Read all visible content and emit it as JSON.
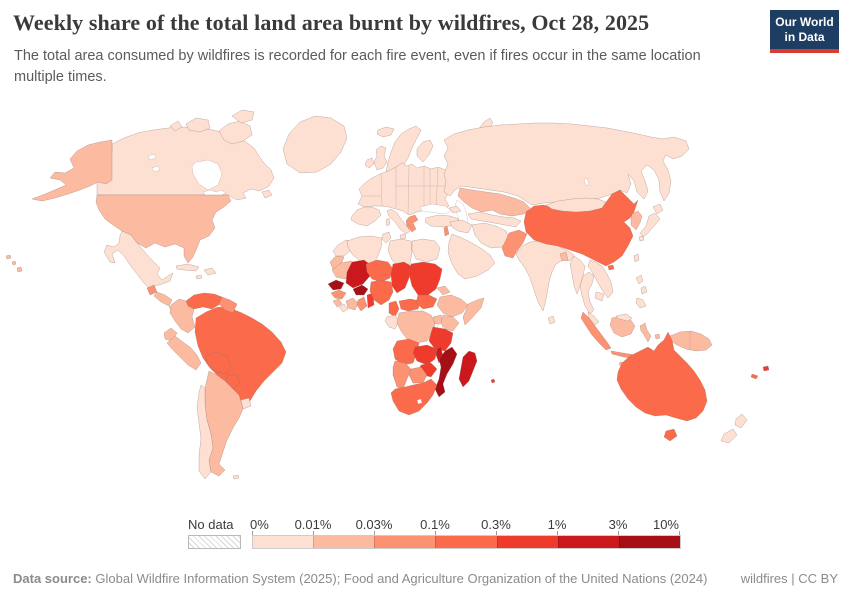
{
  "header": {
    "title": "Weekly share of the total land area burnt by wildfires, Oct 28, 2025",
    "subtitle": "The total area consumed by wildfires is recorded for each fire event, even if fires occur in the same location multiple times.",
    "logo": {
      "line1": "Our World",
      "line2": "in Data",
      "bg": "#1d3d63",
      "accent": "#d73c34"
    }
  },
  "legend": {
    "no_data_label": "No data",
    "tick_labels": [
      "0%",
      "0.01%",
      "0.03%",
      "0.1%",
      "0.3%",
      "1%",
      "3%",
      "10%"
    ]
  },
  "footer": {
    "source_label": "Data source:",
    "source_text": "Global Wildfire Information System (2025); Food and Agriculture Organization of the United Nations (2024)",
    "attribution": "wildfires | CC BY"
  },
  "map": {
    "water": "#ffffff",
    "border_color": "#8d7068"
  },
  "chart_data": {
    "type": "heatmap",
    "subtype": "world-choropleth",
    "title": "Weekly share of the total land area burnt by wildfires",
    "date": "Oct 28, 2025",
    "unit": "share of total land area burnt per week",
    "legend_position": "bottom",
    "bin_ranges": [
      "0-0.01%",
      "0.01-0.03%",
      "0.03-0.1%",
      "0.1-0.3%",
      "0.3-1%",
      "1-3%",
      "3-10%"
    ],
    "bin_colors": [
      "#fee0d2",
      "#fcbba1",
      "#fc9272",
      "#fb6a4a",
      "#ef3b2c",
      "#cb181d",
      "#a50f15"
    ],
    "no_data_label": "No data",
    "country_bins": {
      "canada": "0-0.01%",
      "united_states": "0.01-0.03%",
      "greenland": "0-0.01%",
      "mexico": "0-0.01%",
      "guatemala": "0.03-0.1%",
      "honduras_nicaragua": "0.01-0.03%",
      "costa_rica_panama": "0-0.01%",
      "cuba": "0-0.01%",
      "hispaniola": "0-0.01%",
      "jamaica": "0-0.01%",
      "venezuela": "0.1-0.3%",
      "colombia": "0.01-0.03%",
      "guyana_suriname": "0.03-0.1%",
      "ecuador": "0.01-0.03%",
      "peru": "0.01-0.03%",
      "brazil": "0.1-0.3%",
      "bolivia": "0.1-0.3%",
      "paraguay": "0.1-0.3%",
      "uruguay": "0-0.01%",
      "argentina": "0.01-0.03%",
      "chile": "0-0.01%",
      "falkland_islands": "0-0.01%",
      "iceland": "0-0.01%",
      "united_kingdom": "0-0.01%",
      "ireland": "0-0.01%",
      "norway_sweden": "0-0.01%",
      "finland": "0-0.01%",
      "europe_mainland": "0-0.01%",
      "iberia": "0-0.01%",
      "italy": "0-0.01%",
      "greece": "0.03-0.1%",
      "turkey": "0-0.01%",
      "novaya_zemlya": "0-0.01%",
      "russia": "0-0.01%",
      "kazakhstan": "0.01-0.03%",
      "central_asia": "0-0.01%",
      "caucasus": "0-0.01%",
      "syria_iraq": "0-0.01%",
      "iran": "0-0.01%",
      "arabia": "0-0.01%",
      "levant": "0.03-0.1%",
      "pakistan": "0.03-0.1%",
      "india": "0-0.01%",
      "sri_lanka": "0-0.01%",
      "bangladesh": "0.01-0.03%",
      "china": "0.1-0.3%",
      "mongolia": "0-0.01%",
      "korea": "0.01-0.03%",
      "japan": "0-0.01%",
      "taiwan": "0-0.01%",
      "myanmar": "0-0.01%",
      "thailand": "0-0.01%",
      "laos_vietnam": "0-0.01%",
      "cambodia": "0-0.01%",
      "malaysia": "0-0.01%",
      "philippines": "0-0.01%",
      "sumatra": "0.03-0.1%",
      "borneo": "0.01-0.03%",
      "java": "0.03-0.1%",
      "sulawesi": "0.01-0.03%",
      "lesser_sunda": "0.01-0.03%",
      "new_guinea": "0.01-0.03%",
      "australia": "0.1-0.3%",
      "new_zealand": "0-0.01%",
      "fiji": "0.3-1%",
      "new_caledonia": "0.1-0.3%",
      "morocco": "0-0.01%",
      "western_sahara": "0.01-0.03%",
      "algeria": "0-0.01%",
      "tunisia": "0-0.01%",
      "libya": "0-0.01%",
      "egypt": "0-0.01%",
      "mauritania": "0.01-0.03%",
      "senegal": "3-10%",
      "guinea": "0.03-0.1%",
      "sierra_leone": "0.01-0.03%",
      "liberia": "0-0.01%",
      "mali": "1-3%",
      "burkina_faso": "3-10%",
      "cote_divoire": "0.01-0.03%",
      "ghana": "0.03-0.1%",
      "togo_benin": "0.3-1%",
      "niger": "0.1-0.3%",
      "nigeria": "0.1-0.3%",
      "chad": "0.3-1%",
      "sudan": "0.3-1%",
      "eritrea": "0.01-0.03%",
      "ethiopia": "0.01-0.03%",
      "somalia": "0.01-0.03%",
      "cameroon": "0.1-0.3%",
      "central_african_republic": "0.1-0.3%",
      "south_sudan": "0.1-0.3%",
      "gabon_congo": "0-0.01%",
      "dr_congo": "0.01-0.03%",
      "uganda": "0.01-0.03%",
      "kenya": "0.01-0.03%",
      "tanzania": "0.3-1%",
      "angola": "0.1-0.3%",
      "zambia": "0.3-1%",
      "malawi": "1-3%",
      "mozambique": "3-10%",
      "zimbabwe": "0.3-1%",
      "botswana": "0.03-0.1%",
      "namibia": "0.03-0.1%",
      "south_africa": "0.1-0.3%",
      "madagascar": "1-3%",
      "mauritius": "0.3-1%"
    }
  }
}
